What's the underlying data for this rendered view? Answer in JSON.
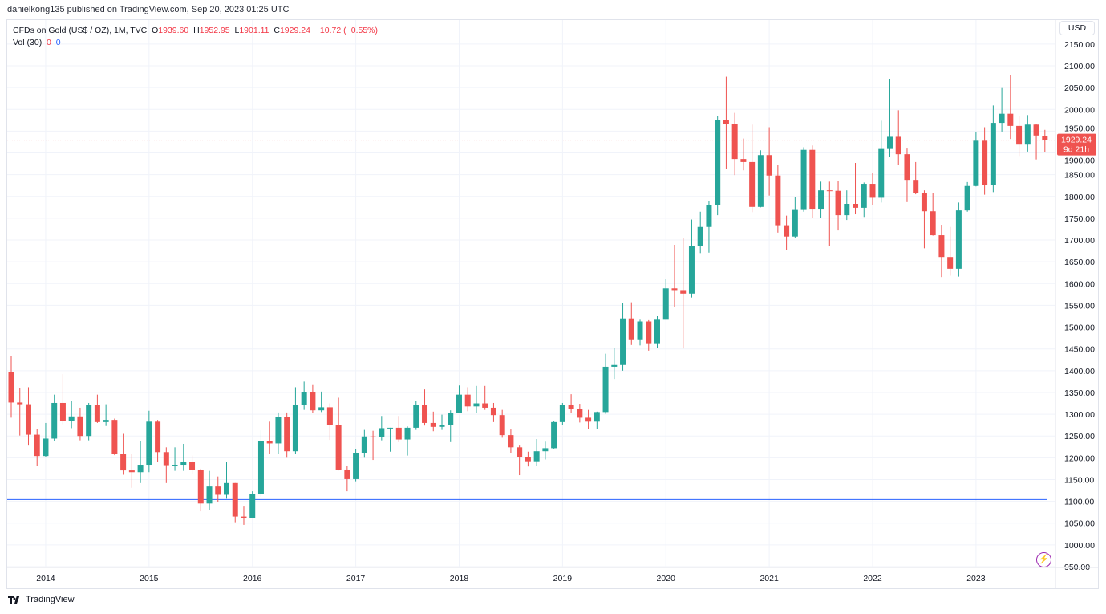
{
  "publish_line": "danielkong135 published on TradingView.com, Sep 20, 2023 01:25 UTC",
  "legend": {
    "symbol": "CFDs on Gold (US$ / OZ), 1M, TVC",
    "open_label": "O",
    "open": "1939.60",
    "high_label": "H",
    "high": "1952.95",
    "low_label": "L",
    "low": "1901.11",
    "close_label": "C",
    "close": "1929.24",
    "change": "−10.72 (−0.55%)",
    "vol_label": "Vol (30)",
    "vol_a": "0",
    "vol_b": "0"
  },
  "currency_button": "USD",
  "last_price_label": {
    "price": "1929.24",
    "countdown": "9d 21h"
  },
  "footer_brand": "TradingView",
  "colors": {
    "up": "#26a69a",
    "down": "#ef5350",
    "hline": "#2962ff",
    "grid": "#f0f3fa",
    "alert_icon": "#9c27b0"
  },
  "icons": [
    "tradingview-logo-icon",
    "lightning-icon"
  ],
  "chart_data": {
    "type": "candlestick",
    "interval": "1M",
    "ylim": [
      950,
      2150
    ],
    "y_ticks": [
      "950.00",
      "1000.00",
      "1050.00",
      "1100.00",
      "1150.00",
      "1200.00",
      "1250.00",
      "1300.00",
      "1350.00",
      "1400.00",
      "1450.00",
      "1500.00",
      "1550.00",
      "1600.00",
      "1650.00",
      "1700.00",
      "1750.00",
      "1800.00",
      "1850.00",
      "1900.00",
      "1950.00",
      "2000.00",
      "2050.00",
      "2100.00",
      "2150.00"
    ],
    "x_ticks": [
      "2014",
      "2015",
      "2016",
      "2017",
      "2018",
      "2019",
      "2020",
      "2021",
      "2022",
      "2023"
    ],
    "grid": true,
    "horizontal_line": 1104,
    "candles_columns": [
      "month",
      "open",
      "high",
      "low",
      "close"
    ],
    "candles": [
      [
        "2013-09",
        1396,
        1434,
        1292,
        1327
      ],
      [
        "2013-10",
        1327,
        1361,
        1251,
        1323
      ],
      [
        "2013-11",
        1323,
        1362,
        1228,
        1253
      ],
      [
        "2013-12",
        1253,
        1267,
        1182,
        1204
      ],
      [
        "2014-01",
        1204,
        1280,
        1202,
        1244
      ],
      [
        "2014-02",
        1244,
        1345,
        1238,
        1326
      ],
      [
        "2014-03",
        1326,
        1392,
        1277,
        1284
      ],
      [
        "2014-04",
        1284,
        1331,
        1268,
        1295
      ],
      [
        "2014-05",
        1295,
        1315,
        1240,
        1250
      ],
      [
        "2014-06",
        1250,
        1326,
        1240,
        1322
      ],
      [
        "2014-07",
        1322,
        1345,
        1280,
        1282
      ],
      [
        "2014-08",
        1282,
        1323,
        1273,
        1287
      ],
      [
        "2014-09",
        1287,
        1290,
        1206,
        1208
      ],
      [
        "2014-10",
        1208,
        1255,
        1161,
        1171
      ],
      [
        "2014-11",
        1171,
        1208,
        1131,
        1167
      ],
      [
        "2014-12",
        1167,
        1238,
        1142,
        1184
      ],
      [
        "2015-01",
        1184,
        1308,
        1167,
        1283
      ],
      [
        "2015-02",
        1283,
        1287,
        1191,
        1213
      ],
      [
        "2015-03",
        1213,
        1224,
        1142,
        1183
      ],
      [
        "2015-04",
        1183,
        1224,
        1170,
        1184
      ],
      [
        "2015-05",
        1184,
        1232,
        1170,
        1190
      ],
      [
        "2015-06",
        1190,
        1205,
        1162,
        1172
      ],
      [
        "2015-07",
        1172,
        1175,
        1077,
        1095
      ],
      [
        "2015-08",
        1095,
        1170,
        1080,
        1134
      ],
      [
        "2015-09",
        1134,
        1157,
        1098,
        1115
      ],
      [
        "2015-10",
        1115,
        1191,
        1106,
        1142
      ],
      [
        "2015-11",
        1142,
        1142,
        1052,
        1065
      ],
      [
        "2015-12",
        1065,
        1088,
        1046,
        1061
      ],
      [
        "2016-01",
        1061,
        1123,
        1061,
        1117
      ],
      [
        "2016-02",
        1117,
        1263,
        1110,
        1238
      ],
      [
        "2016-03",
        1238,
        1283,
        1208,
        1233
      ],
      [
        "2016-04",
        1233,
        1304,
        1208,
        1293
      ],
      [
        "2016-05",
        1293,
        1304,
        1200,
        1215
      ],
      [
        "2016-06",
        1215,
        1362,
        1208,
        1322
      ],
      [
        "2016-07",
        1322,
        1375,
        1310,
        1350
      ],
      [
        "2016-08",
        1350,
        1367,
        1302,
        1309
      ],
      [
        "2016-09",
        1309,
        1352,
        1305,
        1316
      ],
      [
        "2016-10",
        1316,
        1325,
        1241,
        1276
      ],
      [
        "2016-11",
        1276,
        1338,
        1171,
        1173
      ],
      [
        "2016-12",
        1173,
        1181,
        1123,
        1151
      ],
      [
        "2017-01",
        1151,
        1220,
        1146,
        1211
      ],
      [
        "2017-02",
        1211,
        1264,
        1200,
        1249
      ],
      [
        "2017-03",
        1249,
        1262,
        1195,
        1248
      ],
      [
        "2017-04",
        1248,
        1296,
        1240,
        1268
      ],
      [
        "2017-05",
        1268,
        1269,
        1214,
        1269
      ],
      [
        "2017-06",
        1269,
        1296,
        1236,
        1242
      ],
      [
        "2017-07",
        1242,
        1272,
        1205,
        1269
      ],
      [
        "2017-08",
        1269,
        1331,
        1264,
        1322
      ],
      [
        "2017-09",
        1322,
        1357,
        1274,
        1280
      ],
      [
        "2017-10",
        1280,
        1306,
        1261,
        1271
      ],
      [
        "2017-11",
        1271,
        1299,
        1264,
        1275
      ],
      [
        "2017-12",
        1275,
        1309,
        1236,
        1303
      ],
      [
        "2018-01",
        1303,
        1366,
        1302,
        1345
      ],
      [
        "2018-02",
        1345,
        1362,
        1307,
        1318
      ],
      [
        "2018-03",
        1318,
        1365,
        1303,
        1325
      ],
      [
        "2018-04",
        1325,
        1365,
        1310,
        1315
      ],
      [
        "2018-05",
        1315,
        1326,
        1282,
        1298
      ],
      [
        "2018-06",
        1298,
        1310,
        1246,
        1252
      ],
      [
        "2018-07",
        1252,
        1265,
        1211,
        1224
      ],
      [
        "2018-08",
        1224,
        1228,
        1160,
        1201
      ],
      [
        "2018-09",
        1201,
        1214,
        1180,
        1192
      ],
      [
        "2018-10",
        1192,
        1243,
        1182,
        1215
      ],
      [
        "2018-11",
        1215,
        1237,
        1196,
        1222
      ],
      [
        "2018-12",
        1222,
        1284,
        1221,
        1282
      ],
      [
        "2019-01",
        1282,
        1326,
        1276,
        1321
      ],
      [
        "2019-02",
        1321,
        1346,
        1302,
        1313
      ],
      [
        "2019-03",
        1313,
        1324,
        1281,
        1292
      ],
      [
        "2019-04",
        1292,
        1310,
        1266,
        1283
      ],
      [
        "2019-05",
        1283,
        1306,
        1266,
        1305
      ],
      [
        "2019-06",
        1305,
        1439,
        1301,
        1409
      ],
      [
        "2019-07",
        1409,
        1453,
        1381,
        1413
      ],
      [
        "2019-08",
        1413,
        1555,
        1400,
        1520
      ],
      [
        "2019-09",
        1520,
        1557,
        1459,
        1472
      ],
      [
        "2019-10",
        1472,
        1517,
        1458,
        1513
      ],
      [
        "2019-11",
        1513,
        1516,
        1446,
        1463
      ],
      [
        "2019-12",
        1463,
        1525,
        1453,
        1517
      ],
      [
        "2020-01",
        1517,
        1611,
        1517,
        1589
      ],
      [
        "2020-02",
        1589,
        1689,
        1547,
        1585
      ],
      [
        "2020-03",
        1585,
        1704,
        1451,
        1577
      ],
      [
        "2020-04",
        1577,
        1747,
        1568,
        1686
      ],
      [
        "2020-05",
        1686,
        1765,
        1670,
        1730
      ],
      [
        "2020-06",
        1730,
        1789,
        1671,
        1781
      ],
      [
        "2020-07",
        1781,
        1984,
        1757,
        1975
      ],
      [
        "2020-08",
        1975,
        2075,
        1863,
        1967
      ],
      [
        "2020-09",
        1967,
        1992,
        1849,
        1886
      ],
      [
        "2020-10",
        1886,
        1933,
        1860,
        1879
      ],
      [
        "2020-11",
        1879,
        1965,
        1764,
        1776
      ],
      [
        "2020-12",
        1776,
        1906,
        1775,
        1895
      ],
      [
        "2021-01",
        1895,
        1959,
        1802,
        1848
      ],
      [
        "2021-02",
        1848,
        1872,
        1717,
        1734
      ],
      [
        "2021-03",
        1734,
        1756,
        1677,
        1708
      ],
      [
        "2021-04",
        1708,
        1798,
        1704,
        1769
      ],
      [
        "2021-05",
        1769,
        1913,
        1765,
        1907
      ],
      [
        "2021-06",
        1907,
        1917,
        1751,
        1770
      ],
      [
        "2021-07",
        1770,
        1834,
        1750,
        1814
      ],
      [
        "2021-08",
        1814,
        1834,
        1687,
        1813
      ],
      [
        "2021-09",
        1813,
        1836,
        1722,
        1757
      ],
      [
        "2021-10",
        1757,
        1814,
        1746,
        1783
      ],
      [
        "2021-11",
        1783,
        1877,
        1759,
        1774
      ],
      [
        "2021-12",
        1774,
        1832,
        1753,
        1829
      ],
      [
        "2022-01",
        1829,
        1854,
        1780,
        1797
      ],
      [
        "2022-02",
        1797,
        1974,
        1786,
        1909
      ],
      [
        "2022-03",
        1909,
        2070,
        1890,
        1937
      ],
      [
        "2022-04",
        1937,
        1998,
        1872,
        1897
      ],
      [
        "2022-05",
        1897,
        1910,
        1787,
        1838
      ],
      [
        "2022-06",
        1838,
        1879,
        1805,
        1807
      ],
      [
        "2022-07",
        1807,
        1814,
        1681,
        1766
      ],
      [
        "2022-08",
        1766,
        1808,
        1710,
        1711
      ],
      [
        "2022-09",
        1711,
        1735,
        1615,
        1661
      ],
      [
        "2022-10",
        1661,
        1730,
        1618,
        1634
      ],
      [
        "2022-11",
        1634,
        1786,
        1616,
        1768
      ],
      [
        "2022-12",
        1768,
        1833,
        1765,
        1824
      ],
      [
        "2023-01",
        1824,
        1949,
        1823,
        1928
      ],
      [
        "2023-02",
        1928,
        1959,
        1804,
        1826
      ],
      [
        "2023-03",
        1826,
        2009,
        1810,
        1969
      ],
      [
        "2023-04",
        1969,
        2049,
        1949,
        1990
      ],
      [
        "2023-05",
        1990,
        2079,
        1932,
        1962
      ],
      [
        "2023-06",
        1962,
        1985,
        1893,
        1919
      ],
      [
        "2023-07",
        1919,
        1987,
        1903,
        1965
      ],
      [
        "2023-08",
        1965,
        1966,
        1885,
        1940
      ],
      [
        "2023-09",
        1939.6,
        1952.95,
        1901.11,
        1929.24
      ]
    ]
  }
}
